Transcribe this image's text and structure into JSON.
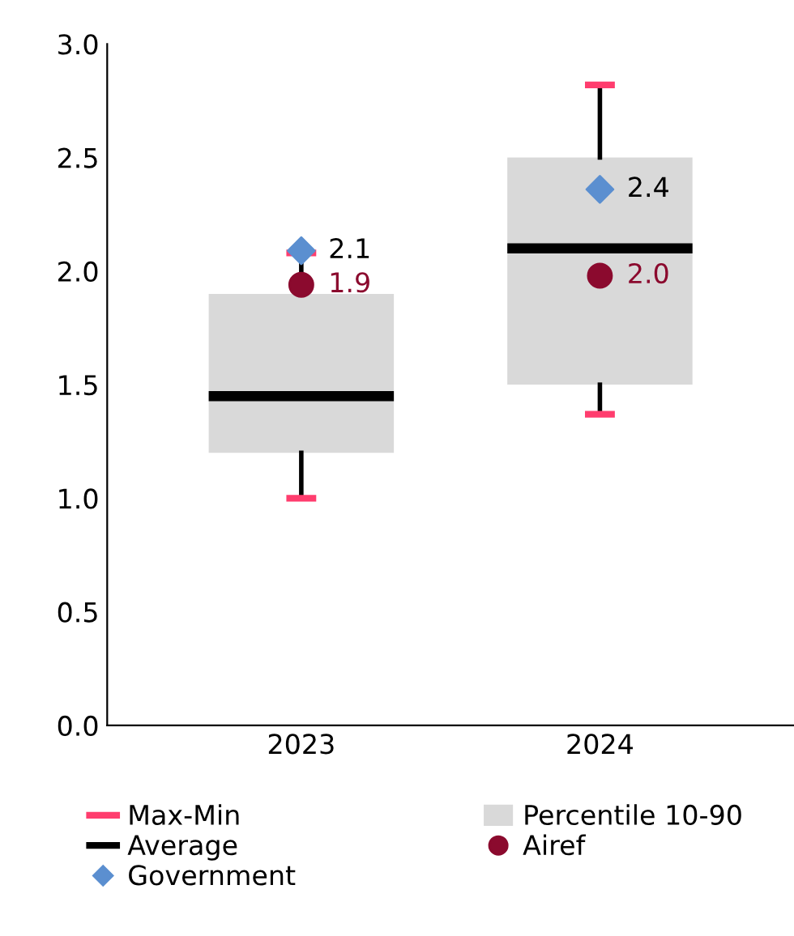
{
  "chart_data": {
    "type": "box",
    "categories": [
      "2023",
      "2024"
    ],
    "ylim": [
      0,
      3.0
    ],
    "yticks": [
      {
        "value": 0,
        "label": "0.0"
      },
      {
        "value": 0.5,
        "label": "0.5"
      },
      {
        "value": 1.0,
        "label": "1.0"
      },
      {
        "value": 1.5,
        "label": "1.5"
      },
      {
        "value": 2.0,
        "label": "2.0"
      },
      {
        "value": 2.5,
        "label": "2.5"
      },
      {
        "value": 3.0,
        "label": "3.0"
      }
    ],
    "grid": false,
    "legend": "bottom",
    "annotations": [
      "Max-Min",
      "Average"
    ],
    "series": [
      {
        "type": "box",
        "name": "Percentile 10-90",
        "color": "#d9d9d9",
        "boxes": [
          {
            "low": 1.0,
            "q1": 1.2,
            "median": 1.45,
            "q3": 1.9,
            "high": 2.08
          },
          {
            "low": 1.37,
            "q1": 1.5,
            "median": 2.1,
            "q3": 2.5,
            "high": 2.82
          }
        ]
      },
      {
        "type": "scatter",
        "name": "Airef",
        "color": "#8b0a2e",
        "marker": "circle",
        "values": [
          1.94,
          1.98
        ],
        "value_labels": [
          "1.9",
          "2.0"
        ]
      },
      {
        "type": "scatter",
        "name": "Government",
        "color": "#5b8fd0",
        "marker": "diamond",
        "values": [
          2.09,
          2.36
        ],
        "value_labels": [
          "2.1",
          "2.4"
        ]
      }
    ]
  }
}
